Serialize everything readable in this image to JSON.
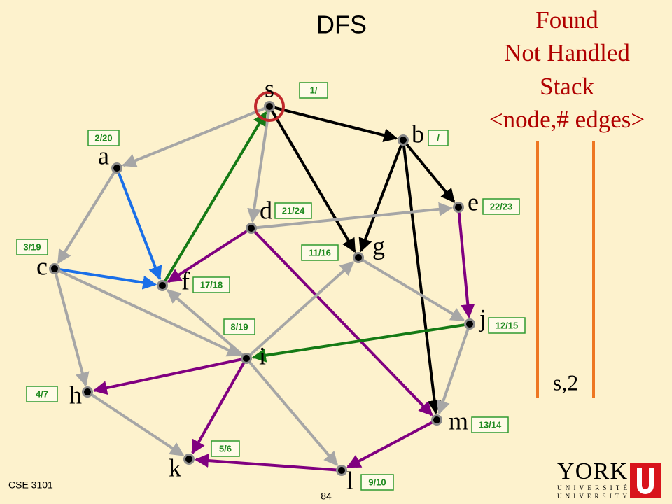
{
  "title": "DFS",
  "legend": [
    "Found",
    "Not Handled",
    "Stack",
    "<node,# edges>"
  ],
  "stack": [
    "s,2"
  ],
  "nodes": [
    {
      "label": "s",
      "time": "1/"
    },
    {
      "label": "a",
      "time": "2/20"
    },
    {
      "label": "b",
      "time": "/"
    },
    {
      "label": "c",
      "time": "3/19"
    },
    {
      "label": "d",
      "time": "21/24"
    },
    {
      "label": "e",
      "time": "22/23"
    },
    {
      "label": "f",
      "time": "17/18"
    },
    {
      "label": "g",
      "time": "11/16"
    },
    {
      "label": "h",
      "time": "4/7"
    },
    {
      "label": "i",
      "time": "8/19"
    },
    {
      "label": "j",
      "time": "12/15"
    },
    {
      "label": "k",
      "time": "5/6"
    },
    {
      "label": "l",
      "time": "9/10"
    },
    {
      "label": "m",
      "time": "13/14"
    }
  ],
  "footer": {
    "course": "CSE 3101",
    "page": "84"
  },
  "logo": {
    "name": "YORK",
    "line1": "UNIVERSITÉ",
    "line2": "UNIVERSITY"
  }
}
